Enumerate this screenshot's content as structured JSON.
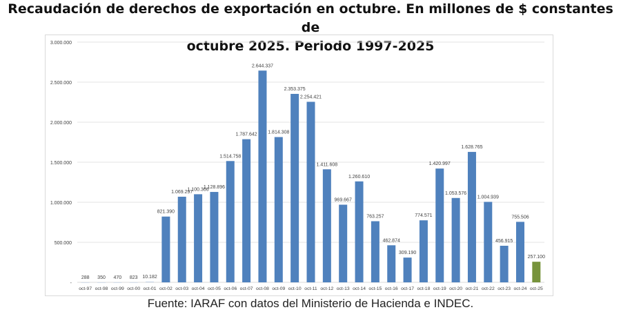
{
  "chart_data": {
    "type": "bar",
    "title": "Recaudación de derechos de exportación en octubre. En millones de $ constantes de octubre 2025. Periodo 1997-2025",
    "title_lines": [
      "Recaudación de derechos de exportación en octubre. En millones de $ constantes de",
      "octubre 2025. Periodo 1997-2025"
    ],
    "xlabel": "",
    "ylabel": "",
    "ylim": [
      0,
      3000000
    ],
    "yticks": [
      "-",
      "500.000",
      "1.000.000",
      "1.500.000",
      "2.000.000",
      "2.500.000",
      "3.000.000"
    ],
    "grid": true,
    "categories": [
      "oct-97",
      "oct-98",
      "oct-99",
      "oct-00",
      "oct-01",
      "oct-02",
      "oct-03",
      "oct-04",
      "oct-05",
      "oct-06",
      "oct-07",
      "oct-08",
      "oct-09",
      "oct-10",
      "oct-11",
      "oct-12",
      "oct-13",
      "oct-14",
      "oct-15",
      "oct-16",
      "oct-17",
      "oct-18",
      "oct-19",
      "oct-20",
      "oct-21",
      "oct-22",
      "oct-23",
      "oct-24",
      "oct-25"
    ],
    "values": [
      288,
      350,
      470,
      823,
      10182,
      821390,
      1069297,
      1100366,
      1128896,
      1514758,
      1787642,
      2644337,
      1814308,
      2353375,
      2254421,
      1411608,
      969667,
      1260610,
      763257,
      462874,
      309190,
      774571,
      1420997,
      1053576,
      1628765,
      1004939,
      456915,
      755506,
      257100
    ],
    "data_labels": [
      "288",
      "350",
      "470",
      "823",
      "10.182",
      "821.390",
      "1.069.297",
      "1.100.366",
      "1.128.896",
      "1.514.758",
      "1.787.642",
      "2.644.337",
      "1.814.308",
      "2.353.375",
      "2.254.421",
      "1.411.608",
      "969.667",
      "1.260.610",
      "763.257",
      "462.874",
      "309.190",
      "774.571",
      "1.420.997",
      "1.053.576",
      "1.628.765",
      "1.004.939",
      "456.915",
      "755.506",
      "257.100"
    ],
    "colors": {
      "bar": "#4f81bd",
      "highlight": "#77933c",
      "grid": "#e3e3e3"
    },
    "highlight_category": "oct-25"
  },
  "footer": "Fuente: IARAF con datos del Ministerio de Hacienda e INDEC."
}
